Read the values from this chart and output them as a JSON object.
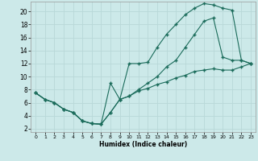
{
  "xlabel": "Humidex (Indice chaleur)",
  "xlim": [
    -0.5,
    23.5
  ],
  "ylim": [
    1.5,
    21.5
  ],
  "xticks": [
    0,
    1,
    2,
    3,
    4,
    5,
    6,
    7,
    8,
    9,
    10,
    11,
    12,
    13,
    14,
    15,
    16,
    17,
    18,
    19,
    20,
    21,
    22,
    23
  ],
  "yticks": [
    2,
    4,
    6,
    8,
    10,
    12,
    14,
    16,
    18,
    20
  ],
  "bg_color": "#cce9e9",
  "line_color": "#1a6b5a",
  "grid_color": "#b8d8d8",
  "line1_x": [
    0,
    1,
    2,
    3,
    4,
    5,
    6,
    7,
    8,
    9,
    10,
    11,
    12,
    13,
    14,
    15,
    16,
    17,
    18,
    19,
    20,
    21,
    22,
    23
  ],
  "line1_y": [
    7.5,
    6.5,
    6.0,
    5.0,
    4.5,
    3.2,
    2.8,
    2.7,
    9.0,
    6.5,
    12.0,
    12.0,
    12.2,
    14.5,
    16.5,
    18.0,
    19.5,
    20.5,
    21.2,
    21.0,
    20.5,
    20.2,
    12.5,
    12.0
  ],
  "line2_x": [
    0,
    1,
    2,
    3,
    4,
    5,
    6,
    7,
    8,
    9,
    10,
    11,
    12,
    13,
    14,
    15,
    16,
    17,
    18,
    19,
    20,
    21,
    22,
    23
  ],
  "line2_y": [
    7.5,
    6.5,
    6.0,
    5.0,
    4.5,
    3.2,
    2.8,
    2.7,
    4.5,
    6.5,
    7.0,
    8.0,
    9.0,
    10.0,
    11.5,
    12.5,
    14.5,
    16.5,
    18.5,
    19.0,
    13.0,
    12.5,
    12.5,
    12.0
  ],
  "line3_x": [
    0,
    1,
    2,
    3,
    4,
    5,
    6,
    7,
    8,
    9,
    10,
    11,
    12,
    13,
    14,
    15,
    16,
    17,
    18,
    19,
    20,
    21,
    22,
    23
  ],
  "line3_y": [
    7.5,
    6.5,
    6.0,
    5.0,
    4.5,
    3.2,
    2.8,
    2.7,
    4.5,
    6.5,
    7.0,
    7.8,
    8.2,
    8.8,
    9.2,
    9.8,
    10.2,
    10.8,
    11.0,
    11.2,
    11.0,
    11.0,
    11.5,
    12.0
  ]
}
